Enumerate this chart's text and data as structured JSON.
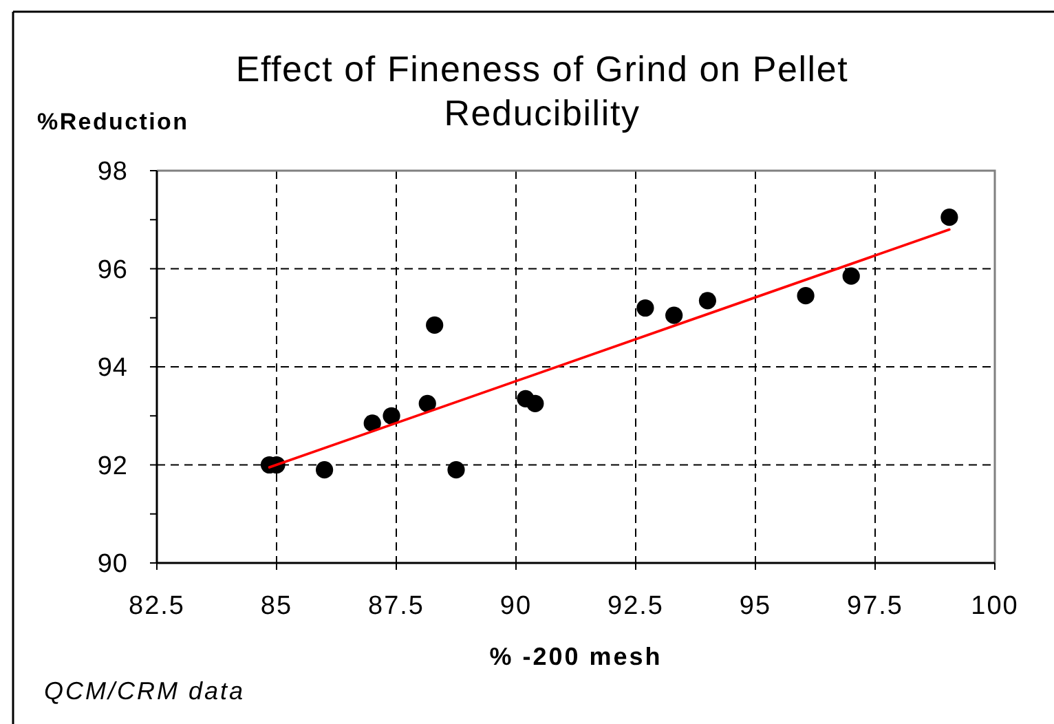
{
  "chart_data": {
    "type": "scatter",
    "title": "Effect of Fineness of Grind on Pellet Reducibility",
    "xlabel": "% -200 mesh",
    "ylabel": "%Reduction",
    "annotations": [
      "QCM/CRM data"
    ],
    "xlim": [
      82.5,
      100
    ],
    "xticks": [
      82.5,
      85,
      87.5,
      90,
      92.5,
      95,
      97.5,
      100
    ],
    "ylim": [
      90,
      98
    ],
    "yticks": [
      90,
      {
        "value": 91,
        "label": null
      },
      92,
      {
        "value": 93,
        "label": null
      },
      94,
      {
        "value": 95,
        "label": null
      },
      96,
      {
        "value": 97,
        "label": null
      },
      98
    ],
    "grid": true,
    "marker": "circle",
    "series": [
      {
        "color": "#000000",
        "x": [
          84.85,
          85.0,
          86.0,
          87.0,
          87.4,
          88.15,
          88.3,
          88.75,
          90.2,
          90.4,
          92.7,
          93.3,
          94.0,
          96.05,
          97.0,
          99.05
        ],
        "values": [
          92.0,
          92.0,
          91.9,
          92.85,
          93.0,
          93.25,
          94.85,
          91.9,
          93.35,
          93.25,
          95.2,
          95.05,
          95.35,
          95.45,
          95.85,
          97.05
        ]
      },
      {
        "type": "line",
        "color": "#ff0000",
        "marker": "none",
        "x": [
          84.85,
          99.05
        ],
        "values": [
          91.95,
          96.8
        ]
      }
    ]
  }
}
